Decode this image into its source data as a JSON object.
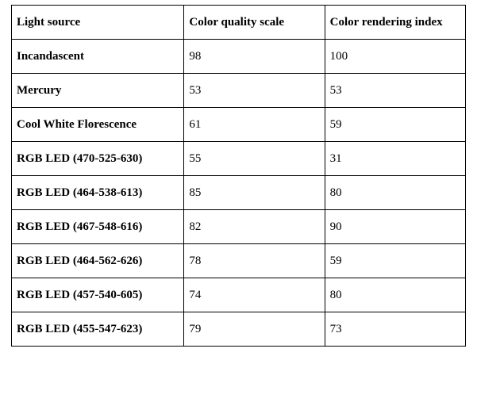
{
  "table": {
    "headers": {
      "source": "Light source",
      "cqs": "Color quality scale",
      "cri": "Color rendering index"
    },
    "rows": [
      {
        "source": "Incandascent",
        "cqs": "98",
        "cri": "100"
      },
      {
        "source": "Mercury",
        "cqs": "53",
        "cri": "53"
      },
      {
        "source": "Cool White Florescence",
        "cqs": "61",
        "cri": "59"
      },
      {
        "source": "RGB LED (470-525-630)",
        "cqs": "55",
        "cri": "31"
      },
      {
        "source": "RGB LED (464-538-613)",
        "cqs": "85",
        "cri": "80"
      },
      {
        "source": "RGB LED (467-548-616)",
        "cqs": "82",
        "cri": "90"
      },
      {
        "source": "RGB LED (464-562-626)",
        "cqs": "78",
        "cri": "59"
      },
      {
        "source": "RGB LED (457-540-605)",
        "cqs": "74",
        "cri": "80"
      },
      {
        "source": "RGB LED (455-547-623)",
        "cqs": "79",
        "cri": "73"
      }
    ],
    "column_widths_pct": [
      38,
      31,
      31
    ],
    "border_color": "#000000",
    "background_color": "#ffffff",
    "text_color": "#000000",
    "font_family": "Times New Roman",
    "header_fontsize_pt": 12,
    "cell_fontsize_pt": 12,
    "line_height": 2.0
  }
}
